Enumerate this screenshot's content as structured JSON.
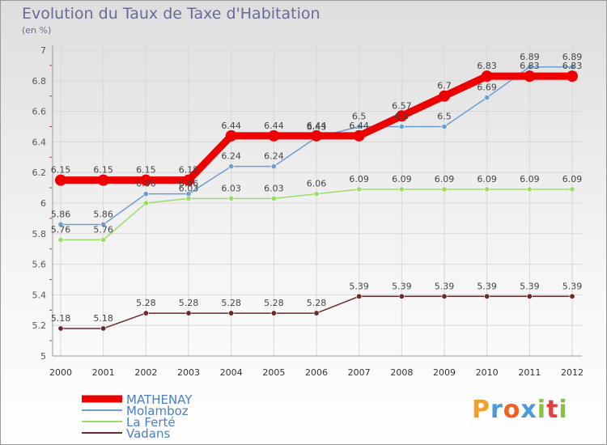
{
  "title": "Evolution du Taux de Taxe d'Habitation",
  "unit_label": "(en %)",
  "logo_text": {
    "p": "P",
    "r": "r",
    "o": "o",
    "x": "x",
    "i": "i",
    "t": "t",
    "i2": "i"
  },
  "chart_data": {
    "type": "line",
    "title": "Evolution du Taux de Taxe d'Habitation",
    "ylabel": "(en %)",
    "xlabel": "",
    "ylim": [
      5,
      7
    ],
    "yticks": [
      "5",
      "5.2",
      "5.4",
      "5.6",
      "5.8",
      "6",
      "6.2",
      "6.4",
      "6.6",
      "6.8",
      "7"
    ],
    "x": [
      "2000",
      "2001",
      "2002",
      "2003",
      "2004",
      "2005",
      "2006",
      "2007",
      "2008",
      "2009",
      "2010",
      "2011",
      "2012"
    ],
    "grid": true,
    "legend_position": "bottom-left",
    "series": [
      {
        "name": "MATHENAY",
        "color": "#ee0000",
        "values": [
          6.15,
          6.15,
          6.15,
          6.15,
          6.44,
          6.44,
          6.44,
          6.44,
          6.57,
          6.7,
          6.83,
          6.83,
          6.83
        ]
      },
      {
        "name": "Molamboz",
        "color": "#6a9fd0",
        "values": [
          5.86,
          5.86,
          6.06,
          6.06,
          6.24,
          6.24,
          6.43,
          6.5,
          6.5,
          6.5,
          6.69,
          6.89,
          6.89
        ]
      },
      {
        "name": "La Ferté",
        "color": "#99dd66",
        "values": [
          5.76,
          5.76,
          6.0,
          6.03,
          6.03,
          6.03,
          6.06,
          6.09,
          6.09,
          6.09,
          6.09,
          6.09,
          6.09
        ]
      },
      {
        "name": "Vadans",
        "color": "#6b2a2a",
        "values": [
          5.18,
          5.18,
          5.28,
          5.28,
          5.28,
          5.28,
          5.28,
          5.39,
          5.39,
          5.39,
          5.39,
          5.39,
          5.39
        ]
      }
    ],
    "point_labels": [
      {
        "series": 0,
        "labels": [
          "6.15",
          "6.15",
          "6.15",
          "6.15",
          "6.44",
          "6.44",
          "6.44",
          "6.44",
          "6.57",
          "6.7",
          "6.83",
          "6.83",
          "6.83"
        ]
      },
      {
        "series": 1,
        "labels": [
          "5.86",
          "5.86",
          "6.06",
          "6.06",
          "6.24",
          "6.24",
          "6.43",
          "6.5",
          "6.5",
          "6.5",
          "6.69",
          "6.89",
          "6.89"
        ]
      },
      {
        "series": 2,
        "labels": [
          "5.76",
          "5.76",
          "",
          "6.03",
          "6.03",
          "6.03",
          "6.06",
          "6.09",
          "6.09",
          "6.09",
          "6.09",
          "6.09",
          "6.09"
        ]
      },
      {
        "series": 3,
        "labels": [
          "5.18",
          "5.18",
          "5.28",
          "5.28",
          "5.28",
          "5.28",
          "5.28",
          "5.39",
          "5.39",
          "5.39",
          "5.39",
          "5.39",
          "5.39"
        ]
      }
    ]
  }
}
